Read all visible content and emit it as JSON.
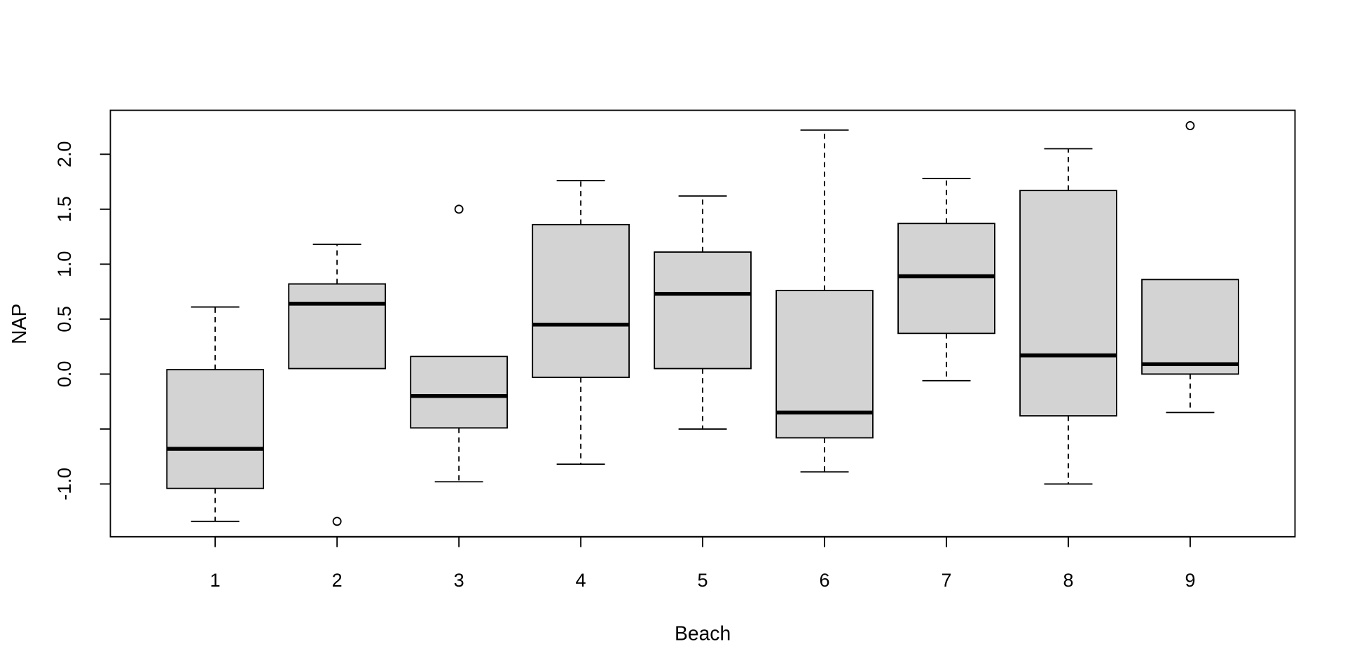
{
  "chart_data": {
    "type": "boxplot",
    "title": "",
    "xlabel": "Beach",
    "ylabel": "NAP",
    "categories": [
      "1",
      "2",
      "3",
      "4",
      "5",
      "6",
      "7",
      "8",
      "9"
    ],
    "xlim": [
      0.14,
      9.86
    ],
    "ylim": [
      -1.48,
      2.4
    ],
    "yticks": [
      -1.0,
      -0.5,
      0.0,
      0.5,
      1.0,
      1.5,
      2.0
    ],
    "ytick_labels": [
      "-1.0",
      "",
      "0.0",
      "0.5",
      "1.0",
      "1.5",
      "2.0"
    ],
    "grid": false,
    "box_fill": "#d3d3d3",
    "boxes": [
      {
        "category": "1",
        "whisker_low": -1.34,
        "q1": -1.04,
        "median": -0.68,
        "q3": 0.04,
        "whisker_high": 0.61,
        "outliers": []
      },
      {
        "category": "2",
        "whisker_low": 0.05,
        "q1": 0.05,
        "median": 0.64,
        "q3": 0.82,
        "whisker_high": 1.18,
        "outliers": [
          -1.34
        ]
      },
      {
        "category": "3",
        "whisker_low": -0.98,
        "q1": -0.49,
        "median": -0.2,
        "q3": 0.16,
        "whisker_high": 0.16,
        "outliers": [
          1.5
        ]
      },
      {
        "category": "4",
        "whisker_low": -0.82,
        "q1": -0.03,
        "median": 0.45,
        "q3": 1.36,
        "whisker_high": 1.76,
        "outliers": []
      },
      {
        "category": "5",
        "whisker_low": -0.5,
        "q1": 0.05,
        "median": 0.73,
        "q3": 1.11,
        "whisker_high": 1.62,
        "outliers": []
      },
      {
        "category": "6",
        "whisker_low": -0.89,
        "q1": -0.58,
        "median": -0.35,
        "q3": 0.76,
        "whisker_high": 2.22,
        "outliers": []
      },
      {
        "category": "7",
        "whisker_low": -0.06,
        "q1": 0.37,
        "median": 0.89,
        "q3": 1.37,
        "whisker_high": 1.78,
        "outliers": []
      },
      {
        "category": "8",
        "whisker_low": -1.0,
        "q1": -0.38,
        "median": 0.17,
        "q3": 1.67,
        "whisker_high": 2.05,
        "outliers": []
      },
      {
        "category": "9",
        "whisker_low": -0.35,
        "q1": 0.0,
        "median": 0.09,
        "q3": 0.86,
        "whisker_high": 0.86,
        "outliers": [
          2.26
        ]
      }
    ]
  }
}
